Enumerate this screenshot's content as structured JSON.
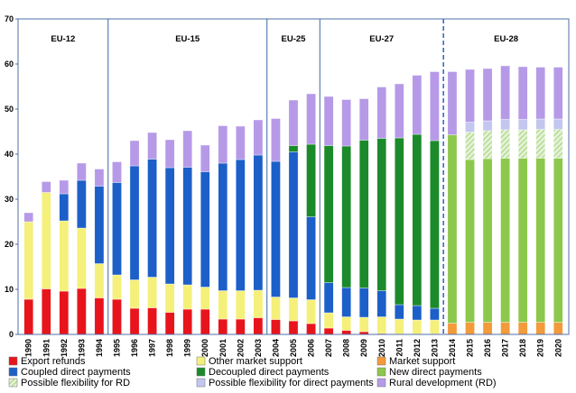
{
  "chart_data": {
    "type": "bar",
    "stacked": true,
    "categories": [
      "1990",
      "1991",
      "1992",
      "1993",
      "1994",
      "1995",
      "1996",
      "1997",
      "1998",
      "1999",
      "2000",
      "2001",
      "2002",
      "2003",
      "2004",
      "2005",
      "2006",
      "2007",
      "2008",
      "2009",
      "2010",
      "2011",
      "2012",
      "2013",
      "2014",
      "2015",
      "2016",
      "2017",
      "2018",
      "2019",
      "2020"
    ],
    "ylim": [
      0,
      70
    ],
    "yticks": [
      "0",
      "10",
      "20",
      "30",
      "40",
      "50",
      "60",
      "70"
    ],
    "grid": false,
    "legend_position": "bottom",
    "periods": [
      {
        "label": "EU-12",
        "start": 0,
        "end": 4
      },
      {
        "label": "EU-15",
        "start": 5,
        "end": 13
      },
      {
        "label": "EU-25",
        "start": 14,
        "end": 16
      },
      {
        "label": "EU-27",
        "start": 17,
        "end": 23
      },
      {
        "label": "EU-28",
        "start": 24,
        "end": 30
      }
    ],
    "series": [
      {
        "name": "Export refunds",
        "color": "#e8141c",
        "values": [
          7.8,
          10.1,
          9.6,
          10.2,
          8.1,
          7.8,
          5.8,
          5.9,
          4.9,
          5.6,
          5.6,
          3.4,
          3.4,
          3.7,
          3.3,
          3.0,
          2.4,
          1.4,
          0.9,
          0.6,
          0.2,
          0.1,
          0.1,
          0.1,
          0,
          0,
          0,
          0,
          0,
          0,
          0
        ]
      },
      {
        "name": "Other market support",
        "color": "#f4f07a",
        "values": [
          17.2,
          21.4,
          15.6,
          13.4,
          7.6,
          5.4,
          6.3,
          6.8,
          6.3,
          5.4,
          4.9,
          6.3,
          6.3,
          6.1,
          5.0,
          5.1,
          5.3,
          3.4,
          3.0,
          3.2,
          3.7,
          3.3,
          3.1,
          3.1,
          0,
          0,
          0,
          0,
          0,
          0,
          0
        ]
      },
      {
        "name": "Market support",
        "color": "#f39a3b",
        "values": [
          0,
          0,
          0,
          0,
          0,
          0,
          0,
          0,
          0,
          0,
          0,
          0,
          0,
          0,
          0,
          0,
          0,
          0,
          0,
          0,
          0,
          0,
          0,
          0,
          2.5,
          2.7,
          2.7,
          2.7,
          2.7,
          2.7,
          2.7
        ]
      },
      {
        "name": "Coupled direct payments",
        "color": "#1c5fc8",
        "values": [
          0,
          0,
          6.0,
          10.6,
          17.2,
          20.5,
          25.3,
          26.2,
          25.8,
          26.1,
          25.6,
          28.3,
          29.1,
          30.0,
          30.1,
          32.4,
          18.4,
          6.7,
          6.5,
          6.5,
          5.8,
          3.2,
          3.2,
          2.6,
          0,
          0,
          0,
          0,
          0,
          0,
          0
        ]
      },
      {
        "name": "Decoupled direct payments",
        "color": "#1b8a2a",
        "values": [
          0,
          0,
          0,
          0,
          0,
          0,
          0,
          0,
          0,
          0,
          0,
          0,
          0,
          0,
          0,
          1.4,
          16.1,
          30.4,
          31.4,
          32.8,
          33.8,
          37.0,
          38.0,
          37.2,
          0,
          0,
          0,
          0,
          0,
          0,
          0
        ]
      },
      {
        "name": "New direct payments",
        "color": "#8cc84b",
        "values": [
          0,
          0,
          0,
          0,
          0,
          0,
          0,
          0,
          0,
          0,
          0,
          0,
          0,
          0,
          0,
          0,
          0,
          0,
          0,
          0,
          0,
          0,
          0,
          0,
          41.8,
          36.1,
          36.3,
          36.4,
          36.4,
          36.4,
          36.4
        ]
      },
      {
        "name": "Possible flexibility for RD",
        "color": "#cfe8c0",
        "values": [
          0,
          0,
          0,
          0,
          0,
          0,
          0,
          0,
          0,
          0,
          0,
          0,
          0,
          0,
          0,
          0,
          0,
          0,
          0,
          0,
          0,
          0,
          0,
          0,
          0,
          6.1,
          6.2,
          6.3,
          6.3,
          6.4,
          6.4
        ]
      },
      {
        "name": "Possible flexibility for direct payments",
        "color": "#c3c6ef",
        "values": [
          0,
          0,
          0,
          0,
          0,
          0,
          0,
          0,
          0,
          0,
          0,
          0,
          0,
          0,
          0,
          0,
          0,
          0,
          0,
          0,
          0,
          0,
          0,
          0,
          0,
          2.2,
          2.2,
          2.3,
          2.3,
          2.3,
          2.3
        ]
      },
      {
        "name": "Rural development (RD)",
        "color": "#b69ae8",
        "values": [
          2.0,
          2.4,
          3.0,
          3.8,
          3.8,
          4.6,
          5.6,
          5.9,
          6.2,
          8.1,
          5.9,
          8.3,
          7.4,
          7.8,
          9.5,
          10.1,
          11.2,
          10.9,
          10.3,
          9.2,
          11.4,
          12.0,
          13.1,
          15.3,
          14.0,
          11.7,
          11.6,
          11.9,
          11.7,
          11.5,
          11.5
        ]
      }
    ]
  }
}
